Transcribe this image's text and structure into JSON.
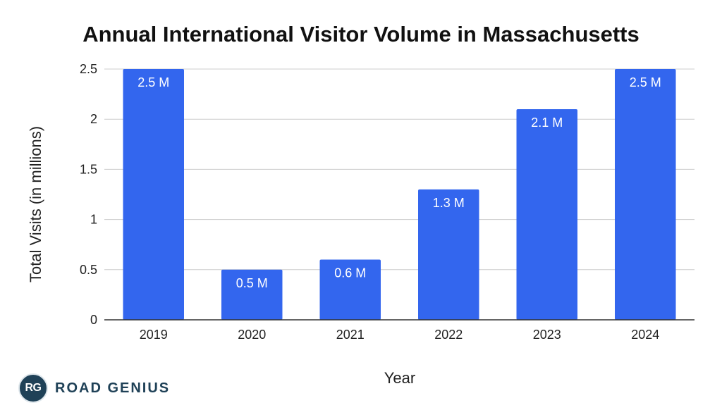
{
  "chart_data": {
    "type": "bar",
    "title": "Annual International Visitor Volume in Massachusetts",
    "xlabel": "Year",
    "ylabel": "Total Visits (in millions)",
    "categories": [
      "2019",
      "2020",
      "2021",
      "2022",
      "2023",
      "2024"
    ],
    "values": [
      2.5,
      0.5,
      0.6,
      1.3,
      2.1,
      2.5
    ],
    "data_labels": [
      "2.5 M",
      "0.5 M",
      "0.6 M",
      "1.3 M",
      "2.1 M",
      "2.5 M"
    ],
    "ylim": [
      0,
      2.5
    ],
    "yticks": [
      "0",
      "0.5",
      "1",
      "1.5",
      "2",
      "2.5"
    ],
    "grid": true,
    "legend": "none",
    "bar_color": "#3366ee"
  },
  "branding": {
    "badge": "RG",
    "name": "ROAD GENIUS",
    "badge_color": "#1f4157"
  }
}
